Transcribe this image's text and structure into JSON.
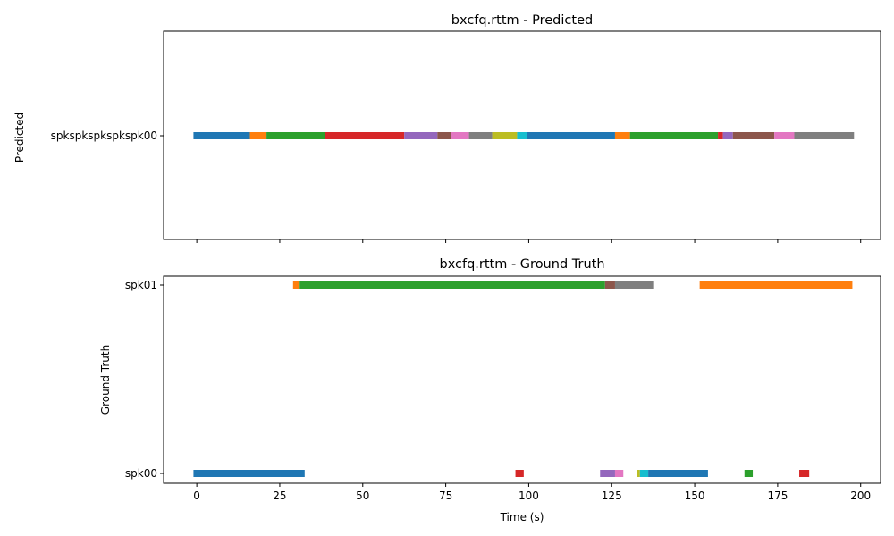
{
  "chart_data": [
    {
      "type": "timeline",
      "title": "bxcfq.rttm - Predicted",
      "ylabel": "Predicted",
      "xlabel": "",
      "xlim": [
        -10,
        206
      ],
      "x_ticks": [
        0,
        25,
        50,
        75,
        100,
        125,
        150,
        175,
        200
      ],
      "show_x_tick_labels": false,
      "tracks": [
        "spkspkspkspkspk00"
      ],
      "segments": [
        {
          "track": "spkspkspkspkspk00",
          "start": -1,
          "end": 16,
          "color": "#1f77b4"
        },
        {
          "track": "spkspkspkspkspk00",
          "start": 16,
          "end": 21,
          "color": "#ff7f0e"
        },
        {
          "track": "spkspkspkspkspk00",
          "start": 21,
          "end": 38.5,
          "color": "#2ca02c"
        },
        {
          "track": "spkspkspkspkspk00",
          "start": 38.5,
          "end": 62.5,
          "color": "#d62728"
        },
        {
          "track": "spkspkspkspkspk00",
          "start": 62.5,
          "end": 72.5,
          "color": "#9467bd"
        },
        {
          "track": "spkspkspkspkspk00",
          "start": 72.5,
          "end": 76.5,
          "color": "#8c564b"
        },
        {
          "track": "spkspkspkspkspk00",
          "start": 76.5,
          "end": 82,
          "color": "#e377c2"
        },
        {
          "track": "spkspkspkspkspk00",
          "start": 82,
          "end": 89,
          "color": "#7f7f7f"
        },
        {
          "track": "spkspkspkspkspk00",
          "start": 89,
          "end": 96.5,
          "color": "#bcbd22"
        },
        {
          "track": "spkspkspkspkspk00",
          "start": 96.5,
          "end": 99.5,
          "color": "#17becf"
        },
        {
          "track": "spkspkspkspkspk00",
          "start": 99.5,
          "end": 126,
          "color": "#1f77b4"
        },
        {
          "track": "spkspkspkspkspk00",
          "start": 126,
          "end": 130.5,
          "color": "#ff7f0e"
        },
        {
          "track": "spkspkspkspkspk00",
          "start": 130.5,
          "end": 157,
          "color": "#2ca02c"
        },
        {
          "track": "spkspkspkspkspk00",
          "start": 157,
          "end": 158.5,
          "color": "#d62728"
        },
        {
          "track": "spkspkspkspkspk00",
          "start": 158.5,
          "end": 161.5,
          "color": "#9467bd"
        },
        {
          "track": "spkspkspkspkspk00",
          "start": 161.5,
          "end": 174,
          "color": "#8c564b"
        },
        {
          "track": "spkspkspkspkspk00",
          "start": 174,
          "end": 180,
          "color": "#e377c2"
        },
        {
          "track": "spkspkspkspkspk00",
          "start": 180,
          "end": 198,
          "color": "#7f7f7f"
        }
      ]
    },
    {
      "type": "timeline",
      "title": "bxcfq.rttm - Ground Truth",
      "ylabel": "Ground Truth",
      "xlabel": "Time (s)",
      "xlim": [
        -10,
        206
      ],
      "x_ticks": [
        0,
        25,
        50,
        75,
        100,
        125,
        150,
        175,
        200
      ],
      "show_x_tick_labels": true,
      "tracks": [
        "spk00",
        "spk01"
      ],
      "segments": [
        {
          "track": "spk01",
          "start": 29,
          "end": 31,
          "color": "#ff7f0e"
        },
        {
          "track": "spk01",
          "start": 31,
          "end": 123,
          "color": "#2ca02c"
        },
        {
          "track": "spk01",
          "start": 123,
          "end": 126,
          "color": "#8c564b"
        },
        {
          "track": "spk01",
          "start": 126,
          "end": 137.5,
          "color": "#7f7f7f"
        },
        {
          "track": "spk01",
          "start": 151.5,
          "end": 197.5,
          "color": "#ff7f0e"
        },
        {
          "track": "spk00",
          "start": -1,
          "end": 32.5,
          "color": "#1f77b4"
        },
        {
          "track": "spk00",
          "start": 96,
          "end": 98.5,
          "color": "#d62728"
        },
        {
          "track": "spk00",
          "start": 121.5,
          "end": 126,
          "color": "#9467bd"
        },
        {
          "track": "spk00",
          "start": 126,
          "end": 128.5,
          "color": "#e377c2"
        },
        {
          "track": "spk00",
          "start": 132.5,
          "end": 133.5,
          "color": "#bcbd22"
        },
        {
          "track": "spk00",
          "start": 133.5,
          "end": 136,
          "color": "#17becf"
        },
        {
          "track": "spk00",
          "start": 136,
          "end": 154,
          "color": "#1f77b4"
        },
        {
          "track": "spk00",
          "start": 165,
          "end": 167.5,
          "color": "#2ca02c"
        },
        {
          "track": "spk00",
          "start": 181.5,
          "end": 184.5,
          "color": "#d62728"
        }
      ]
    }
  ]
}
